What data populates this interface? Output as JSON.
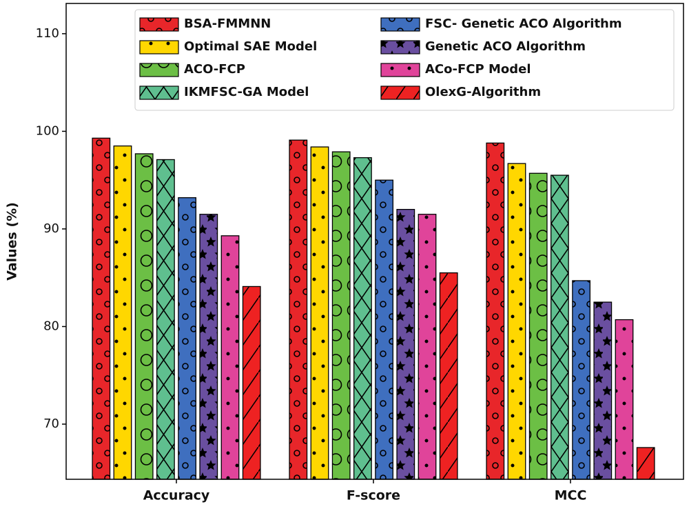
{
  "chart_data": {
    "type": "bar",
    "categories": [
      "Accuracy",
      "F-score",
      "MCC"
    ],
    "y_label": "Values (%)",
    "ylim": [
      64.35,
      113.1
    ],
    "yticks": [
      70,
      80,
      90,
      100,
      110
    ],
    "series": [
      {
        "name": "BSA-FMMNN",
        "color": "#e8262a",
        "values": [
          99.3,
          99.1,
          98.8
        ]
      },
      {
        "name": "Optimal SAE Model",
        "color": "#ffd700",
        "values": [
          98.5,
          98.4,
          96.7
        ]
      },
      {
        "name": "ACO-FCP",
        "color": "#6cbf45",
        "values": [
          97.7,
          97.9,
          95.7
        ]
      },
      {
        "name": "IKMFSC-GA Model",
        "color": "#5fbf8f",
        "values": [
          97.1,
          97.3,
          95.5
        ]
      },
      {
        "name": "FSC- Genetic ACO Algorithm",
        "color": "#3f6fbf",
        "values": [
          93.2,
          95.0,
          84.7
        ]
      },
      {
        "name": "Genetic ACO Algorithm",
        "color": "#6a4fa0",
        "values": [
          91.5,
          92.0,
          82.5
        ]
      },
      {
        "name": "ACo-FCP Model",
        "color": "#e0449a",
        "values": [
          89.3,
          91.5,
          80.7
        ]
      },
      {
        "name": "OlexG-Algorithm",
        "color": "#ee2222",
        "values": [
          84.1,
          85.5,
          67.6
        ]
      }
    ]
  }
}
